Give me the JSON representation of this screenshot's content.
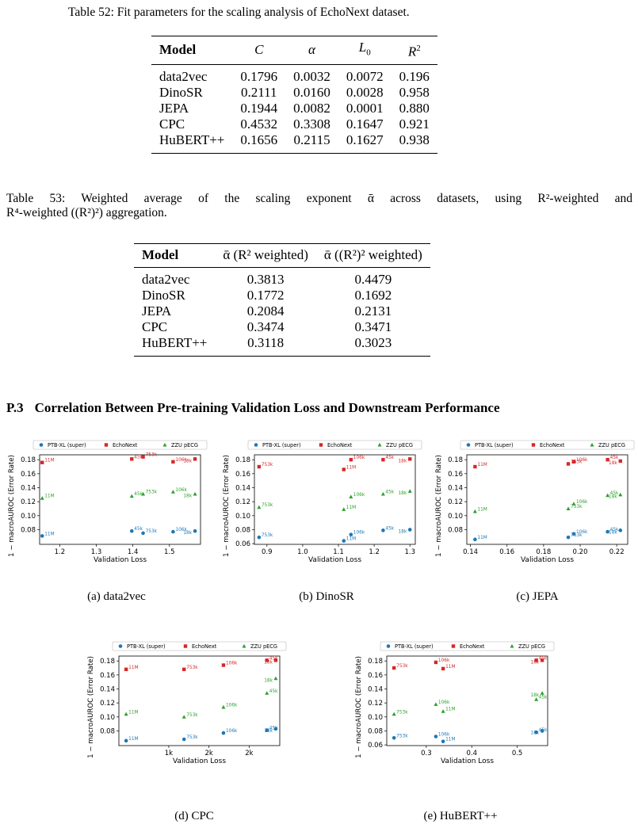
{
  "table52": {
    "caption": "Table 52: Fit parameters for the scaling analysis of EchoNext dataset.",
    "headers": [
      "Model",
      "C",
      "α",
      "L0",
      "R2"
    ],
    "rows": [
      [
        "data2vec",
        "0.1796",
        "0.0032",
        "0.0072",
        "0.196"
      ],
      [
        "DinoSR",
        "0.2111",
        "0.0160",
        "0.0028",
        "0.958"
      ],
      [
        "JEPA",
        "0.1944",
        "0.0082",
        "0.0001",
        "0.880"
      ],
      [
        "CPC",
        "0.4532",
        "0.3308",
        "0.1647",
        "0.921"
      ],
      [
        "HuBERT++",
        "0.1656",
        "0.2115",
        "0.1627",
        "0.938"
      ]
    ]
  },
  "table53": {
    "caption_line1": "Table 53: Weighted average of the scaling exponent ᾱ across datasets, using R²-weighted and",
    "caption_line2": "R⁴-weighted ((R²)²) aggregation.",
    "headers": [
      "Model",
      "ᾱ (R² weighted)",
      "ᾱ ((R²)² weighted)"
    ],
    "rows": [
      [
        "data2vec",
        "0.3813",
        "0.4479"
      ],
      [
        "DinoSR",
        "0.1772",
        "0.1692"
      ],
      [
        "JEPA",
        "0.2084",
        "0.2131"
      ],
      [
        "CPC",
        "0.3474",
        "0.3471"
      ],
      [
        "HuBERT++",
        "0.3118",
        "0.3023"
      ]
    ]
  },
  "section": {
    "number": "P.3",
    "title": "Correlation Between Pre-training Validation Loss and Downstream Performance"
  },
  "colors": {
    "ptb": "#1f77b4",
    "echo": "#d62728",
    "zzu": "#2ca02c"
  },
  "chart_data": [
    {
      "type": "scatter",
      "caption": "(a) data2vec",
      "xlabel": "Validation Loss",
      "ylabel": "1 − macroAUROC (Error Rate)",
      "xlim": [
        1.145,
        1.585
      ],
      "ylim": [
        0.059,
        0.187
      ],
      "xticks": [
        {
          "v": 1.2,
          "label": "1.2"
        },
        {
          "v": 1.3,
          "label": "1.3"
        },
        {
          "v": 1.4,
          "label": "1.4"
        },
        {
          "v": 1.5,
          "label": "1.5"
        }
      ],
      "yticks": [
        {
          "v": 0.08,
          "label": "0.08"
        },
        {
          "v": 0.1,
          "label": "0.10"
        },
        {
          "v": 0.12,
          "label": "0.12"
        },
        {
          "v": 0.14,
          "label": "0.14"
        },
        {
          "v": 0.16,
          "label": "0.16"
        },
        {
          "v": 0.18,
          "label": "0.18"
        }
      ],
      "series": [
        {
          "name": "PTB-XL (super)",
          "marker": "circle",
          "color": "#1f77b4",
          "points": [
            {
              "x": 1.152,
              "y": 0.071,
              "label": "11M"
            },
            {
              "x": 1.397,
              "y": 0.078,
              "label": "45k"
            },
            {
              "x": 1.428,
              "y": 0.075,
              "label": "753k"
            },
            {
              "x": 1.51,
              "y": 0.077,
              "label": "106k"
            },
            {
              "x": 1.57,
              "y": 0.078,
              "label": "18k"
            }
          ]
        },
        {
          "name": "EchoNext",
          "marker": "square",
          "color": "#d62728",
          "points": [
            {
              "x": 1.152,
              "y": 0.176,
              "label": "11M"
            },
            {
              "x": 1.397,
              "y": 0.181,
              "label": "45k"
            },
            {
              "x": 1.428,
              "y": 0.184,
              "label": "753k"
            },
            {
              "x": 1.51,
              "y": 0.177,
              "label": "106k"
            },
            {
              "x": 1.57,
              "y": 0.181,
              "label": "18k"
            }
          ]
        },
        {
          "name": "ZZU pECG",
          "marker": "triangle",
          "color": "#2ca02c",
          "points": [
            {
              "x": 1.152,
              "y": 0.125,
              "label": "11M"
            },
            {
              "x": 1.397,
              "y": 0.128,
              "label": "45k"
            },
            {
              "x": 1.428,
              "y": 0.131,
              "label": "753k"
            },
            {
              "x": 1.51,
              "y": 0.134,
              "label": "106k"
            },
            {
              "x": 1.57,
              "y": 0.131,
              "label": "18k"
            }
          ]
        }
      ]
    },
    {
      "type": "scatter",
      "caption": "(b) DinoSR",
      "xlabel": "Validation Loss",
      "ylabel": "1 − macroAUROC (Error Rate)",
      "xlim": [
        0.865,
        1.315
      ],
      "ylim": [
        0.059,
        0.187
      ],
      "xticks": [
        {
          "v": 0.9,
          "label": "0.9"
        },
        {
          "v": 1.0,
          "label": "1.0"
        },
        {
          "v": 1.1,
          "label": "1.1"
        },
        {
          "v": 1.2,
          "label": "1.2"
        },
        {
          "v": 1.3,
          "label": "1.3"
        }
      ],
      "yticks": [
        {
          "v": 0.06,
          "label": "0.06"
        },
        {
          "v": 0.08,
          "label": "0.08"
        },
        {
          "v": 0.1,
          "label": "0.10"
        },
        {
          "v": 0.12,
          "label": "0.12"
        },
        {
          "v": 0.14,
          "label": "0.14"
        },
        {
          "v": 0.16,
          "label": "0.16"
        },
        {
          "v": 0.18,
          "label": "0.18"
        }
      ],
      "series": [
        {
          "name": "PTB-XL (super)",
          "marker": "circle",
          "color": "#1f77b4",
          "points": [
            {
              "x": 0.878,
              "y": 0.069,
              "label": "753k"
            },
            {
              "x": 1.115,
              "y": 0.064,
              "label": "11M"
            },
            {
              "x": 1.135,
              "y": 0.073,
              "label": "106k"
            },
            {
              "x": 1.225,
              "y": 0.079,
              "label": "45k"
            },
            {
              "x": 1.3,
              "y": 0.08,
              "label": "18k"
            }
          ]
        },
        {
          "name": "EchoNext",
          "marker": "square",
          "color": "#d62728",
          "points": [
            {
              "x": 0.878,
              "y": 0.17,
              "label": "753k"
            },
            {
              "x": 1.115,
              "y": 0.166,
              "label": "11M"
            },
            {
              "x": 1.135,
              "y": 0.18,
              "label": "106k"
            },
            {
              "x": 1.225,
              "y": 0.18,
              "label": "45k"
            },
            {
              "x": 1.3,
              "y": 0.181,
              "label": "18k"
            }
          ]
        },
        {
          "name": "ZZU pECG",
          "marker": "triangle",
          "color": "#2ca02c",
          "points": [
            {
              "x": 0.878,
              "y": 0.112,
              "label": "753k"
            },
            {
              "x": 1.115,
              "y": 0.109,
              "label": "11M"
            },
            {
              "x": 1.135,
              "y": 0.127,
              "label": "106k"
            },
            {
              "x": 1.225,
              "y": 0.131,
              "label": "45k"
            },
            {
              "x": 1.3,
              "y": 0.135,
              "label": "18k"
            }
          ]
        }
      ]
    },
    {
      "type": "scatter",
      "caption": "(c) JEPA",
      "xlabel": "Validation Loss",
      "ylabel": "1 − macroAUROC (Error Rate)",
      "xlim": [
        0.138,
        0.226
      ],
      "ylim": [
        0.059,
        0.187
      ],
      "xticks": [
        {
          "v": 0.14,
          "label": "0.14"
        },
        {
          "v": 0.16,
          "label": "0.16"
        },
        {
          "v": 0.18,
          "label": "0.18"
        },
        {
          "v": 0.2,
          "label": "0.20"
        },
        {
          "v": 0.22,
          "label": "0.22"
        }
      ],
      "yticks": [
        {
          "v": 0.08,
          "label": "0.08"
        },
        {
          "v": 0.1,
          "label": "0.10"
        },
        {
          "v": 0.12,
          "label": "0.12"
        },
        {
          "v": 0.14,
          "label": "0.14"
        },
        {
          "v": 0.16,
          "label": "0.16"
        },
        {
          "v": 0.18,
          "label": "0.18"
        }
      ],
      "series": [
        {
          "name": "PTB-XL (super)",
          "marker": "circle",
          "color": "#1f77b4",
          "points": [
            {
              "x": 0.1425,
              "y": 0.066,
              "label": "11M"
            },
            {
              "x": 0.1935,
              "y": 0.069,
              "label": "753k"
            },
            {
              "x": 0.1965,
              "y": 0.074,
              "label": "106k"
            },
            {
              "x": 0.215,
              "y": 0.077,
              "label": "45k"
            },
            {
              "x": 0.222,
              "y": 0.079,
              "label": "18k"
            }
          ]
        },
        {
          "name": "EchoNext",
          "marker": "square",
          "color": "#d62728",
          "points": [
            {
              "x": 0.1425,
              "y": 0.17,
              "label": "11M"
            },
            {
              "x": 0.1935,
              "y": 0.174,
              "label": "753k"
            },
            {
              "x": 0.1965,
              "y": 0.177,
              "label": "106k"
            },
            {
              "x": 0.215,
              "y": 0.18,
              "label": "45k"
            },
            {
              "x": 0.222,
              "y": 0.178,
              "label": "18k"
            }
          ]
        },
        {
          "name": "ZZU pECG",
          "marker": "triangle",
          "color": "#2ca02c",
          "points": [
            {
              "x": 0.1425,
              "y": 0.106,
              "label": "11M"
            },
            {
              "x": 0.1935,
              "y": 0.11,
              "label": "753k"
            },
            {
              "x": 0.1965,
              "y": 0.117,
              "label": "106k"
            },
            {
              "x": 0.215,
              "y": 0.129,
              "label": "45k"
            },
            {
              "x": 0.222,
              "y": 0.13,
              "label": "18k"
            }
          ]
        }
      ]
    },
    {
      "type": "scatter",
      "caption": "(d) CPC",
      "xlabel": "Validation Loss",
      "ylabel": "1 − macroAUROC (Error Rate)",
      "xlim": [
        0,
        1
      ],
      "ylim": [
        0.059,
        0.187
      ],
      "xticks": [
        {
          "v": 0.31,
          "label": "1k"
        },
        {
          "v": 0.56,
          "label": "2k"
        },
        {
          "v": 0.81,
          "label": "2k"
        }
      ],
      "yticks": [
        {
          "v": 0.08,
          "label": "0.08"
        },
        {
          "v": 0.1,
          "label": "0.10"
        },
        {
          "v": 0.12,
          "label": "0.12"
        },
        {
          "v": 0.14,
          "label": "0.14"
        },
        {
          "v": 0.16,
          "label": "0.16"
        },
        {
          "v": 0.18,
          "label": "0.18"
        }
      ],
      "series": [
        {
          "name": "PTB-XL (super)",
          "marker": "circle",
          "color": "#1f77b4",
          "points": [
            {
              "x": 0.045,
              "y": 0.066,
              "label": "11M"
            },
            {
              "x": 0.405,
              "y": 0.068,
              "label": "753k"
            },
            {
              "x": 0.65,
              "y": 0.077,
              "label": "106k"
            },
            {
              "x": 0.92,
              "y": 0.081,
              "label": "45k"
            },
            {
              "x": 0.975,
              "y": 0.083,
              "label": "18k"
            }
          ]
        },
        {
          "name": "EchoNext",
          "marker": "square",
          "color": "#d62728",
          "points": [
            {
              "x": 0.045,
              "y": 0.168,
              "label": "11M"
            },
            {
              "x": 0.405,
              "y": 0.168,
              "label": "753k"
            },
            {
              "x": 0.65,
              "y": 0.174,
              "label": "106k"
            },
            {
              "x": 0.92,
              "y": 0.181,
              "label": "45k"
            },
            {
              "x": 0.975,
              "y": 0.181,
              "label": "18k"
            }
          ]
        },
        {
          "name": "ZZU pECG",
          "marker": "triangle",
          "color": "#2ca02c",
          "points": [
            {
              "x": 0.045,
              "y": 0.104,
              "label": "11M"
            },
            {
              "x": 0.405,
              "y": 0.1,
              "label": "753k"
            },
            {
              "x": 0.65,
              "y": 0.114,
              "label": "106k"
            },
            {
              "x": 0.92,
              "y": 0.134,
              "label": "45k"
            },
            {
              "x": 0.975,
              "y": 0.155,
              "label": "18k"
            }
          ]
        }
      ]
    },
    {
      "type": "scatter",
      "caption": "(e) HuBERT++",
      "xlabel": "Validation Loss",
      "ylabel": "1 − macroAUROC (Error Rate)",
      "xlim": [
        0.213,
        0.567
      ],
      "ylim": [
        0.059,
        0.187
      ],
      "xticks": [
        {
          "v": 0.3,
          "label": "0.3"
        },
        {
          "v": 0.4,
          "label": "0.4"
        },
        {
          "v": 0.5,
          "label": "0.5"
        }
      ],
      "yticks": [
        {
          "v": 0.06,
          "label": "0.06"
        },
        {
          "v": 0.08,
          "label": "0.08"
        },
        {
          "v": 0.1,
          "label": "0.10"
        },
        {
          "v": 0.12,
          "label": "0.12"
        },
        {
          "v": 0.14,
          "label": "0.14"
        },
        {
          "v": 0.16,
          "label": "0.16"
        },
        {
          "v": 0.18,
          "label": "0.18"
        }
      ],
      "series": [
        {
          "name": "PTB-XL (super)",
          "marker": "circle",
          "color": "#1f77b4",
          "points": [
            {
              "x": 0.229,
              "y": 0.07,
              "label": "753k"
            },
            {
              "x": 0.321,
              "y": 0.072,
              "label": "106k"
            },
            {
              "x": 0.337,
              "y": 0.065,
              "label": "11M"
            },
            {
              "x": 0.542,
              "y": 0.078,
              "label": "45k"
            },
            {
              "x": 0.555,
              "y": 0.08,
              "label": "18k"
            }
          ]
        },
        {
          "name": "EchoNext",
          "marker": "square",
          "color": "#d62728",
          "points": [
            {
              "x": 0.229,
              "y": 0.17,
              "label": "753k"
            },
            {
              "x": 0.321,
              "y": 0.178,
              "label": "106k"
            },
            {
              "x": 0.337,
              "y": 0.169,
              "label": "11M"
            },
            {
              "x": 0.542,
              "y": 0.181,
              "label": "45k"
            },
            {
              "x": 0.555,
              "y": 0.181,
              "label": "18k"
            }
          ]
        },
        {
          "name": "ZZU pECG",
          "marker": "triangle",
          "color": "#2ca02c",
          "points": [
            {
              "x": 0.229,
              "y": 0.104,
              "label": "753k"
            },
            {
              "x": 0.321,
              "y": 0.118,
              "label": "106k"
            },
            {
              "x": 0.337,
              "y": 0.108,
              "label": "11M"
            },
            {
              "x": 0.542,
              "y": 0.125,
              "label": "45k"
            },
            {
              "x": 0.555,
              "y": 0.134,
              "label": "18k"
            }
          ]
        }
      ]
    }
  ]
}
